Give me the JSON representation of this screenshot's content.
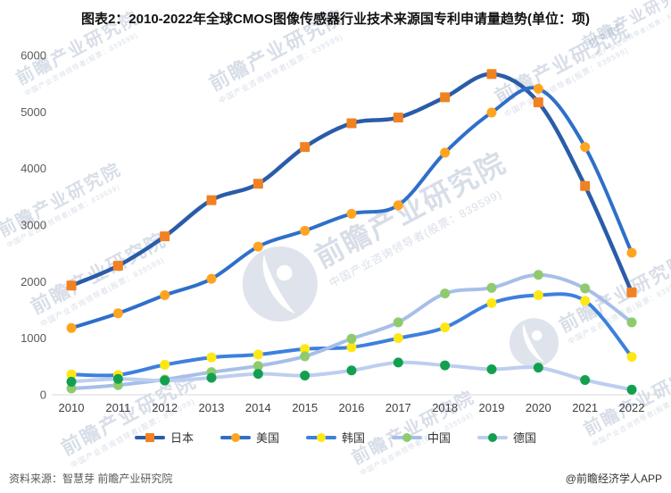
{
  "title": "图表2：2010-2022年全球CMOS图像传感器行业技术来源国专利申请量趋势(单位：项)",
  "source_left": "资料来源：智慧芽 前瞻产业研究院",
  "source_right": "@前瞻经济学人APP",
  "watermark": {
    "main": "前瞻产业研究院",
    "sub": "中国产业咨询领导者(股票：839599)"
  },
  "chart_data": {
    "type": "line",
    "title": "图表2：2010-2022年全球CMOS图像传感器行业技术来源国专利申请量趋势(单位：项)",
    "x": [
      2010,
      2011,
      2012,
      2013,
      2014,
      2015,
      2016,
      2017,
      2018,
      2019,
      2020,
      2021,
      2022
    ],
    "series": [
      {
        "name": "日本",
        "slug": "japan",
        "marker": "square",
        "line_color": "#2A5CA8",
        "marker_color": "#F28121",
        "values": [
          1930,
          2280,
          2800,
          3440,
          3730,
          4380,
          4800,
          4900,
          5260,
          5670,
          5170,
          3690,
          1810
        ]
      },
      {
        "name": "美国",
        "slug": "usa",
        "marker": "circle",
        "line_color": "#2E6FC9",
        "marker_color": "#FFA41F",
        "values": [
          1180,
          1440,
          1760,
          2050,
          2620,
          2900,
          3200,
          3350,
          4280,
          4990,
          5410,
          4380,
          2510
        ]
      },
      {
        "name": "韩国",
        "slug": "korea",
        "marker": "circle",
        "line_color": "#3D80DE",
        "marker_color": "#FFE714",
        "values": [
          360,
          350,
          530,
          660,
          710,
          810,
          840,
          1000,
          1190,
          1620,
          1760,
          1660,
          670
        ]
      },
      {
        "name": "中国",
        "slug": "china",
        "marker": "circle",
        "line_color": "#A7BFE8",
        "marker_color": "#8FCB6E",
        "values": [
          110,
          170,
          270,
          400,
          510,
          680,
          990,
          1280,
          1790,
          1890,
          2120,
          1880,
          1280
        ]
      },
      {
        "name": "德国",
        "slug": "germany",
        "marker": "circle",
        "line_color": "#BDCEEF",
        "marker_color": "#12A04F",
        "values": [
          230,
          280,
          250,
          300,
          370,
          340,
          430,
          570,
          520,
          450,
          480,
          260,
          90
        ]
      }
    ],
    "xlabel": "",
    "ylabel": "",
    "ylim": [
      0,
      6000
    ],
    "yticks": [
      0,
      1000,
      2000,
      3000,
      4000,
      5000,
      6000
    ],
    "grid": false,
    "legend_position": "bottom"
  }
}
